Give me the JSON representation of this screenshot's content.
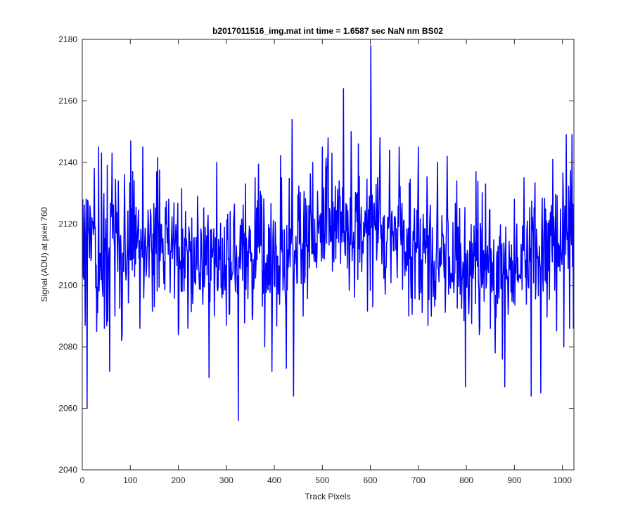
{
  "chart_data": {
    "type": "line",
    "title": "b2017011516_img.mat int time = 1.6587 sec  NaN nm BS02",
    "xlabel": "Track Pixels",
    "ylabel": "Signal (ADU) at pixel 760",
    "xlim": [
      0,
      1024
    ],
    "ylim": [
      2040,
      2180
    ],
    "xticks": [
      0,
      100,
      200,
      300,
      400,
      500,
      600,
      700,
      800,
      900,
      1000
    ],
    "yticks": [
      2040,
      2060,
      2080,
      2100,
      2120,
      2140,
      2160,
      2180
    ],
    "grid": false,
    "legend": "none",
    "series_color": "#0000ff",
    "noise_model": {
      "count": 1024,
      "baseline_profile": {
        "x": [
          0,
          100,
          200,
          300,
          400,
          500,
          550,
          600,
          700,
          800,
          900,
          1000,
          1024
        ],
        "y": [
          2113,
          2112,
          2110,
          2108,
          2109,
          2117,
          2120,
          2118,
          2112,
          2108,
          2107,
          2116,
          2119
        ]
      },
      "amplitude": 10
    },
    "series": [
      {
        "values": [
          {
            "x": 1,
            "y": 2128
          },
          {
            "x": 3,
            "y": 2102
          },
          {
            "x": 6,
            "y": 2087
          },
          {
            "x": 8,
            "y": 2128
          },
          {
            "x": 10,
            "y": 2060
          },
          {
            "x": 12,
            "y": 2127
          },
          {
            "x": 20,
            "y": 2122
          },
          {
            "x": 25,
            "y": 2138
          },
          {
            "x": 30,
            "y": 2085
          },
          {
            "x": 34,
            "y": 2145
          },
          {
            "x": 40,
            "y": 2143
          },
          {
            "x": 46,
            "y": 2086
          },
          {
            "x": 52,
            "y": 2139
          },
          {
            "x": 57,
            "y": 2072
          },
          {
            "x": 62,
            "y": 2143
          },
          {
            "x": 68,
            "y": 2090
          },
          {
            "x": 75,
            "y": 2134
          },
          {
            "x": 82,
            "y": 2082
          },
          {
            "x": 88,
            "y": 2136
          },
          {
            "x": 101,
            "y": 2147
          },
          {
            "x": 120,
            "y": 2086
          },
          {
            "x": 126,
            "y": 2145
          },
          {
            "x": 150,
            "y": 2093
          },
          {
            "x": 155,
            "y": 2137
          },
          {
            "x": 180,
            "y": 2128
          },
          {
            "x": 200,
            "y": 2084
          },
          {
            "x": 220,
            "y": 2086
          },
          {
            "x": 240,
            "y": 2129
          },
          {
            "x": 264,
            "y": 2070
          },
          {
            "x": 280,
            "y": 2140
          },
          {
            "x": 300,
            "y": 2087
          },
          {
            "x": 325,
            "y": 2056
          },
          {
            "x": 340,
            "y": 2133
          },
          {
            "x": 360,
            "y": 2135
          },
          {
            "x": 380,
            "y": 2080
          },
          {
            "x": 395,
            "y": 2072
          },
          {
            "x": 415,
            "y": 2135
          },
          {
            "x": 425,
            "y": 2073
          },
          {
            "x": 437,
            "y": 2154
          },
          {
            "x": 440,
            "y": 2064
          },
          {
            "x": 460,
            "y": 2090
          },
          {
            "x": 480,
            "y": 2140
          },
          {
            "x": 500,
            "y": 2145
          },
          {
            "x": 512,
            "y": 2148
          },
          {
            "x": 520,
            "y": 2143
          },
          {
            "x": 544,
            "y": 2164
          },
          {
            "x": 560,
            "y": 2150
          },
          {
            "x": 575,
            "y": 2146
          },
          {
            "x": 601,
            "y": 2178
          },
          {
            "x": 605,
            "y": 2093
          },
          {
            "x": 620,
            "y": 2148
          },
          {
            "x": 640,
            "y": 2144
          },
          {
            "x": 660,
            "y": 2145
          },
          {
            "x": 680,
            "y": 2090
          },
          {
            "x": 700,
            "y": 2145
          },
          {
            "x": 720,
            "y": 2087
          },
          {
            "x": 740,
            "y": 2140
          },
          {
            "x": 760,
            "y": 2142
          },
          {
            "x": 780,
            "y": 2134
          },
          {
            "x": 798,
            "y": 2067
          },
          {
            "x": 820,
            "y": 2137
          },
          {
            "x": 840,
            "y": 2133
          },
          {
            "x": 860,
            "y": 2078
          },
          {
            "x": 875,
            "y": 2076
          },
          {
            "x": 880,
            "y": 2067
          },
          {
            "x": 900,
            "y": 2128
          },
          {
            "x": 920,
            "y": 2135
          },
          {
            "x": 935,
            "y": 2064
          },
          {
            "x": 955,
            "y": 2065
          },
          {
            "x": 980,
            "y": 2141
          },
          {
            "x": 1003,
            "y": 2080
          },
          {
            "x": 1008,
            "y": 2149
          },
          {
            "x": 1015,
            "y": 2086
          },
          {
            "x": 1020,
            "y": 2149
          },
          {
            "x": 1023,
            "y": 2086
          }
        ]
      }
    ]
  }
}
